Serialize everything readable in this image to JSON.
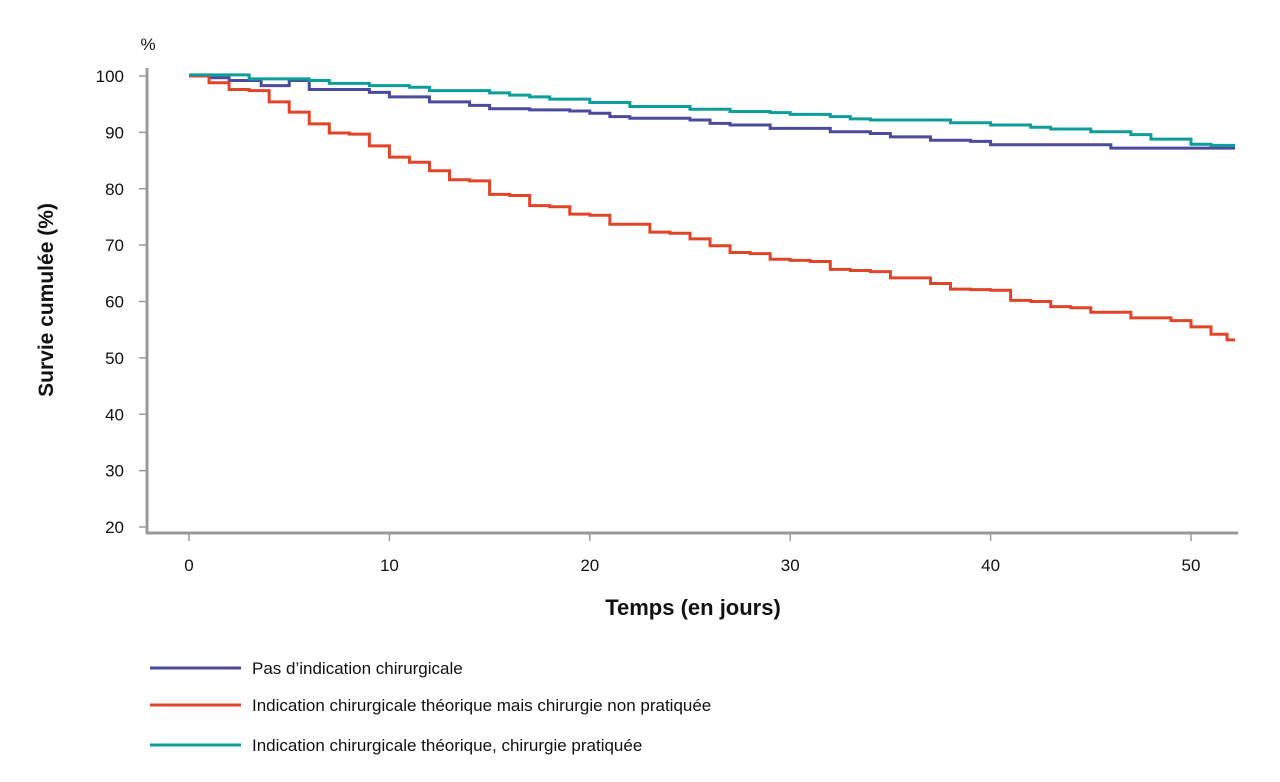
{
  "chart_data": {
    "type": "line",
    "step": true,
    "unit_label": "%",
    "ylabel": "Survie cumulée (%)",
    "xlabel": "Temps (en jours)",
    "xlim": [
      0,
      52.2
    ],
    "ylim": [
      20,
      100
    ],
    "xticks": [
      0,
      10,
      20,
      30,
      40,
      50
    ],
    "yticks": [
      20,
      30,
      40,
      50,
      60,
      70,
      80,
      90,
      100
    ],
    "grid": false,
    "legend_position": "bottom",
    "series": [
      {
        "name": "Pas d’indication chirurgicale",
        "color": "#4b4a9c",
        "points": [
          [
            0,
            100
          ],
          [
            1,
            99.7
          ],
          [
            2,
            99.2
          ],
          [
            3.6,
            98.3
          ],
          [
            5,
            99.2
          ],
          [
            6,
            97.6
          ],
          [
            9,
            97.1
          ],
          [
            10,
            96.3
          ],
          [
            12,
            95.4
          ],
          [
            14,
            94.8
          ],
          [
            15,
            94.2
          ],
          [
            17,
            94.0
          ],
          [
            19,
            93.8
          ],
          [
            20,
            93.4
          ],
          [
            21,
            92.8
          ],
          [
            22,
            92.5
          ],
          [
            25,
            92.2
          ],
          [
            26,
            91.6
          ],
          [
            27,
            91.3
          ],
          [
            29,
            90.7
          ],
          [
            32,
            90.1
          ],
          [
            34,
            89.8
          ],
          [
            35,
            89.2
          ],
          [
            37,
            88.6
          ],
          [
            39,
            88.4
          ],
          [
            40,
            87.8
          ],
          [
            46,
            87.2
          ],
          [
            52.2,
            87.2
          ]
        ]
      },
      {
        "name": "Indication chirurgicale théorique mais chirurgie non pratiquée",
        "color": "#e0452a",
        "points": [
          [
            0,
            100
          ],
          [
            1,
            98.8
          ],
          [
            2,
            97.6
          ],
          [
            3,
            97.4
          ],
          [
            4,
            95.4
          ],
          [
            5,
            93.6
          ],
          [
            6,
            91.5
          ],
          [
            7,
            89.9
          ],
          [
            8,
            89.7
          ],
          [
            9,
            87.6
          ],
          [
            10,
            85.6
          ],
          [
            11,
            84.7
          ],
          [
            12,
            83.2
          ],
          [
            13,
            81.6
          ],
          [
            14,
            81.4
          ],
          [
            15,
            79.0
          ],
          [
            16,
            78.8
          ],
          [
            17,
            77.0
          ],
          [
            18,
            76.8
          ],
          [
            19,
            75.5
          ],
          [
            20,
            75.3
          ],
          [
            21,
            73.7
          ],
          [
            23,
            72.3
          ],
          [
            24,
            72.1
          ],
          [
            25,
            71.1
          ],
          [
            26,
            69.9
          ],
          [
            27,
            68.7
          ],
          [
            28,
            68.5
          ],
          [
            29,
            67.5
          ],
          [
            30,
            67.3
          ],
          [
            31,
            67.1
          ],
          [
            32,
            65.7
          ],
          [
            33,
            65.5
          ],
          [
            34,
            65.3
          ],
          [
            35,
            64.2
          ],
          [
            37,
            63.2
          ],
          [
            38,
            62.2
          ],
          [
            39,
            62.1
          ],
          [
            40,
            62.0
          ],
          [
            41,
            60.2
          ],
          [
            42,
            60.0
          ],
          [
            43,
            59.1
          ],
          [
            44,
            58.9
          ],
          [
            45,
            58.1
          ],
          [
            47,
            57.1
          ],
          [
            49,
            56.6
          ],
          [
            50,
            55.5
          ],
          [
            51,
            54.2
          ],
          [
            51.8,
            53.2
          ],
          [
            52.2,
            53.2
          ]
        ]
      },
      {
        "name": "Indication chirurgicale théorique, chirurgie pratiquée",
        "color": "#0e9e9a",
        "points": [
          [
            0,
            100.2
          ],
          [
            3,
            99.5
          ],
          [
            6,
            99.2
          ],
          [
            7,
            98.7
          ],
          [
            9,
            98.3
          ],
          [
            11,
            98.0
          ],
          [
            12,
            97.4
          ],
          [
            15,
            97.0
          ],
          [
            16,
            96.6
          ],
          [
            17,
            96.3
          ],
          [
            18,
            95.9
          ],
          [
            20,
            95.3
          ],
          [
            22,
            94.6
          ],
          [
            25,
            94.1
          ],
          [
            27,
            93.7
          ],
          [
            29,
            93.5
          ],
          [
            30,
            93.2
          ],
          [
            32,
            92.8
          ],
          [
            33,
            92.4
          ],
          [
            34,
            92.2
          ],
          [
            38,
            91.7
          ],
          [
            40,
            91.3
          ],
          [
            42,
            90.9
          ],
          [
            43,
            90.6
          ],
          [
            45,
            90.1
          ],
          [
            47,
            89.6
          ],
          [
            48,
            88.8
          ],
          [
            50,
            87.9
          ],
          [
            51,
            87.7
          ],
          [
            52.2,
            87.7
          ]
        ]
      }
    ]
  }
}
